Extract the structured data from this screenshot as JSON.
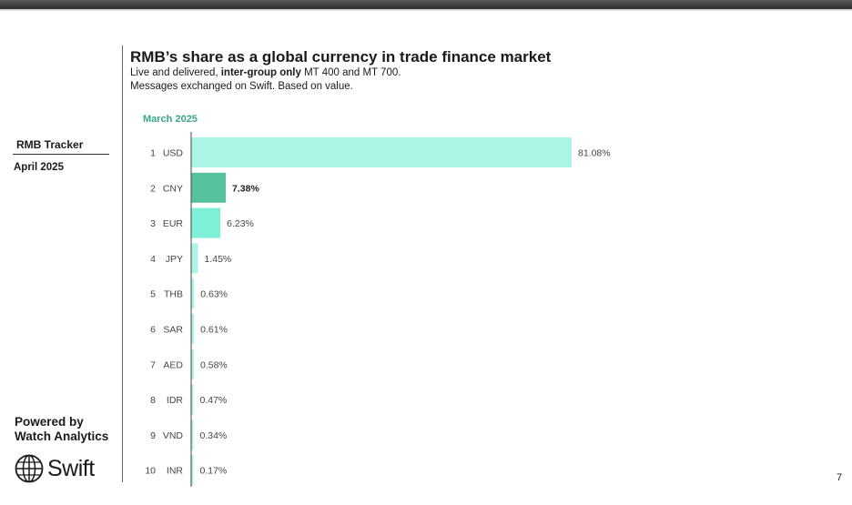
{
  "sidebar": {
    "title": "RMB Tracker",
    "date": "April 2025",
    "powered_line1": "Powered by",
    "powered_line2": "Watch Analytics",
    "logo_text": "Swift",
    "logo_icon": "globe-icon"
  },
  "header": {
    "title": "RMB’s share as a global currency in trade finance market",
    "subtitle_line1_pre": "Live and delivered, ",
    "subtitle_line1_bold": "inter-group only",
    "subtitle_line1_post": " MT 400 and MT 700.",
    "subtitle_line2": "Messages exchanged on Swift. Based on value."
  },
  "period_label": "March 2025",
  "page_number": "7",
  "chart_data": {
    "type": "bar",
    "orientation": "horizontal",
    "ranks": [
      "1",
      "2",
      "3",
      "4",
      "5",
      "6",
      "7",
      "8",
      "9",
      "10"
    ],
    "categories": [
      "USD",
      "CNY",
      "EUR",
      "JPY",
      "THB",
      "SAR",
      "AED",
      "IDR",
      "VND",
      "INR"
    ],
    "values": [
      81.08,
      7.38,
      6.23,
      1.45,
      0.63,
      0.61,
      0.58,
      0.47,
      0.34,
      0.17
    ],
    "value_labels": [
      "81.08%",
      "7.38%",
      "6.23%",
      "1.45%",
      "0.63%",
      "0.61%",
      "0.58%",
      "0.47%",
      "0.34%",
      "0.17%"
    ],
    "highlight": "CNY",
    "colors": {
      "USD": "#a9f5e6",
      "CNY": "#56c29c",
      "EUR": "#7ff0d8",
      "other": "#a9f5e6",
      "axis": "#444444",
      "label": "#444444"
    },
    "xlim": [
      0,
      81.08
    ]
  }
}
